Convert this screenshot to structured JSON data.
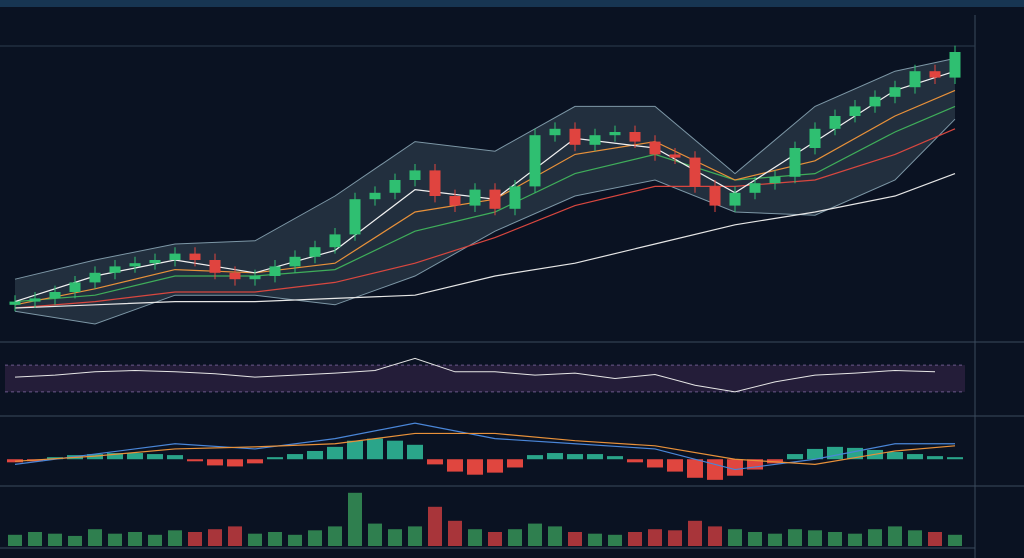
{
  "chart_data": [
    {
      "type": "candlestick",
      "xlim": [
        -0.5,
        47.5
      ],
      "ylim": [
        0,
        100
      ],
      "up_color": "#2fbf71",
      "down_color": "#e0443f",
      "open": [
        11,
        12,
        13,
        15,
        18,
        21,
        23,
        24,
        25,
        27,
        25,
        21,
        19,
        20,
        23,
        26,
        29,
        33,
        44,
        46,
        50,
        53,
        45,
        42,
        47,
        41,
        48,
        64,
        66,
        61,
        64,
        65,
        62,
        58,
        57,
        48,
        42,
        46,
        49,
        51,
        60,
        66,
        70,
        73,
        76,
        79,
        84,
        82
      ],
      "high": [
        14,
        15,
        17,
        20,
        23,
        25,
        26,
        27,
        29,
        29,
        27,
        23,
        22,
        25,
        28,
        31,
        35,
        46,
        48,
        52,
        55,
        55,
        47,
        49,
        49,
        50,
        66,
        68,
        68,
        66,
        67,
        67,
        64,
        60,
        59,
        50,
        48,
        51,
        53,
        62,
        68,
        72,
        75,
        78,
        81,
        86,
        86,
        92
      ],
      "low": [
        9,
        10,
        11,
        13,
        16,
        19,
        21,
        22,
        23,
        23,
        19,
        17,
        17,
        18,
        21,
        24,
        27,
        31,
        42,
        44,
        48,
        43,
        40,
        40,
        39,
        39,
        46,
        62,
        59,
        59,
        62,
        60,
        56,
        55,
        46,
        40,
        40,
        44,
        47,
        49,
        58,
        64,
        68,
        71,
        74,
        77,
        80,
        80
      ],
      "close": [
        12,
        13,
        15,
        18,
        21,
        23,
        24,
        25,
        27,
        25,
        21,
        19,
        20,
        23,
        26,
        29,
        33,
        44,
        46,
        50,
        53,
        45,
        42,
        47,
        41,
        48,
        64,
        66,
        61,
        64,
        65,
        62,
        58,
        57,
        48,
        42,
        46,
        49,
        51,
        60,
        66,
        70,
        73,
        76,
        79,
        84,
        82,
        90
      ],
      "overlay_x": [
        0,
        4,
        8,
        12,
        16,
        20,
        24,
        28,
        32,
        36,
        40,
        44,
        47
      ],
      "band_color": "#7d97a6",
      "band_upper": [
        19,
        25,
        30,
        31,
        45,
        62,
        59,
        73,
        73,
        52,
        73,
        84,
        88
      ],
      "band_lower": [
        9,
        5,
        14,
        14,
        11,
        20,
        34,
        45,
        50,
        40,
        39,
        50,
        69
      ],
      "overlays": [
        {
          "color": "#d9473f",
          "values": [
            10,
            12,
            15,
            15,
            18,
            24,
            32,
            42,
            48,
            48,
            50,
            58,
            66
          ]
        },
        {
          "color": "#3fae5a",
          "values": [
            12,
            14,
            20,
            20,
            22,
            34,
            40,
            52,
            58,
            50,
            52,
            65,
            73
          ]
        },
        {
          "color": "#e8913a",
          "values": [
            11,
            16,
            22,
            21,
            24,
            40,
            44,
            58,
            62,
            50,
            56,
            70,
            78
          ]
        },
        {
          "color": "#f2f2f2",
          "values": [
            12,
            20,
            25,
            21,
            28,
            47,
            44,
            63,
            60,
            46,
            62,
            78,
            84
          ]
        },
        {
          "color": "#e6e6e6",
          "values": [
            10,
            11,
            12,
            12,
            13,
            14,
            20,
            24,
            30,
            36,
            40,
            45,
            52
          ]
        }
      ]
    },
    {
      "type": "line",
      "xlim": [
        -0.5,
        47.5
      ],
      "ylim": [
        0,
        100
      ],
      "band": [
        30,
        70
      ],
      "band_color": "#2a2140",
      "color": "#e6e6e6",
      "x": [
        0,
        2,
        4,
        6,
        8,
        10,
        12,
        14,
        16,
        18,
        20,
        22,
        24,
        26,
        28,
        30,
        32,
        34,
        36,
        38,
        40,
        42,
        44,
        46
      ],
      "values": [
        52,
        55,
        60,
        62,
        60,
        57,
        52,
        55,
        58,
        62,
        80,
        60,
        60,
        55,
        58,
        50,
        56,
        40,
        30,
        45,
        55,
        58,
        62,
        60
      ]
    },
    {
      "type": "macd",
      "xlim": [
        -0.5,
        47.5
      ],
      "ylim": [
        -2.5,
        4
      ],
      "pos_color": "#2aa58a",
      "neg_color": "#e0463f",
      "histogram": [
        -0.3,
        -0.2,
        0.2,
        0.4,
        0.5,
        0.6,
        0.6,
        0.5,
        0.4,
        -0.2,
        -0.6,
        -0.7,
        -0.4,
        0.2,
        0.5,
        0.8,
        1.2,
        1.8,
        2.0,
        1.8,
        1.4,
        -0.5,
        -1.2,
        -1.5,
        -1.3,
        -0.8,
        0.4,
        0.6,
        0.5,
        0.5,
        0.3,
        -0.3,
        -0.8,
        -1.2,
        -1.8,
        -2.0,
        -1.6,
        -1.0,
        -0.4,
        0.5,
        1.0,
        1.2,
        1.1,
        0.9,
        0.7,
        0.5,
        0.3,
        0.2
      ],
      "line_x": [
        0,
        4,
        8,
        12,
        16,
        20,
        24,
        28,
        32,
        36,
        40,
        44,
        47
      ],
      "lines": [
        {
          "color": "#4a86d8",
          "values": [
            -0.5,
            0.5,
            1.5,
            1.0,
            2,
            3.5,
            2,
            1.5,
            1,
            -1,
            0,
            1.5,
            1.5
          ]
        },
        {
          "color": "#e8913a",
          "values": [
            -0.2,
            0.3,
            1,
            1.2,
            1.5,
            2.5,
            2.5,
            1.8,
            1.3,
            0,
            -0.5,
            0.8,
            1.3
          ]
        }
      ]
    },
    {
      "type": "bar",
      "xlim": [
        -0.5,
        47.5
      ],
      "ylim": [
        0,
        100
      ],
      "up_color": "#2f7f4f",
      "down_color": "#a8353a",
      "values": [
        20,
        25,
        22,
        18,
        30,
        22,
        25,
        20,
        28,
        25,
        30,
        35,
        22,
        25,
        20,
        28,
        35,
        95,
        40,
        30,
        35,
        70,
        45,
        30,
        25,
        30,
        40,
        35,
        25,
        22,
        20,
        25,
        30,
        28,
        45,
        35,
        30,
        25,
        22,
        30,
        28,
        25,
        22,
        30,
        35,
        28,
        25,
        20
      ]
    }
  ]
}
